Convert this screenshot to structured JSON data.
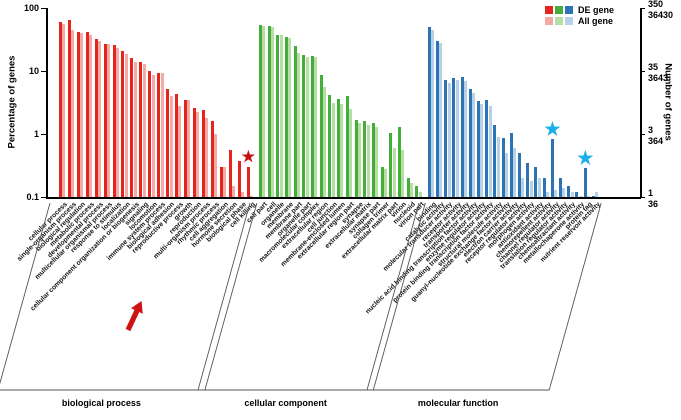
{
  "figure": {
    "y_axis_left": {
      "label": "Percentage of genes",
      "ticks": [
        "100",
        "10",
        "1",
        "0.1"
      ]
    },
    "y_axis_right": {
      "label": "Number of genes",
      "tick_pairs": [
        [
          "350",
          "36430"
        ],
        [
          "35",
          "3643"
        ],
        [
          "3",
          "364"
        ],
        [
          "1",
          "36"
        ]
      ]
    },
    "legend": [
      {
        "label": "DE gene",
        "colors": [
          "#e4251d",
          "#45ad3c",
          "#2d74b4"
        ]
      },
      {
        "label": "All gene",
        "colors": [
          "#f5aba5",
          "#b6dfa3",
          "#b7d2e8"
        ]
      }
    ]
  },
  "chart_data": {
    "type": "bar",
    "scale": "log",
    "ylim": [
      0.1,
      100
    ],
    "ylabel_left": "Percentage of genes",
    "ylabel_right": "Number of genes",
    "series_names": [
      "DE gene",
      "All gene"
    ],
    "values_are": "estimated percentage of genes (log scale)",
    "groups": [
      {
        "name": "biological process",
        "color_de": "#e4251d",
        "color_all": "#f5aba5",
        "star_color": "#c41111",
        "categories": [
          {
            "label": "cellular process",
            "de": 59,
            "all": 56
          },
          {
            "label": "single-organism process",
            "de": 65,
            "all": 45
          },
          {
            "label": "biological regulation",
            "de": 41,
            "all": 40
          },
          {
            "label": "metabolic process",
            "de": 41,
            "all": 37
          },
          {
            "label": "developmental process",
            "de": 32,
            "all": 30
          },
          {
            "label": "multicellular organismal process",
            "de": 27,
            "all": 27
          },
          {
            "label": "response to stimulus",
            "de": 26,
            "all": 23.5
          },
          {
            "label": "localization",
            "de": 20.5,
            "all": 18.5
          },
          {
            "label": "cellular component organization or biogenesis",
            "de": 16,
            "all": 14
          },
          {
            "label": "signaling",
            "de": 14,
            "all": 13
          },
          {
            "label": "locomotion",
            "de": 10,
            "all": 8.5
          },
          {
            "label": "immune system process",
            "de": 9.2,
            "all": 9.2
          },
          {
            "label": "biological adhesion",
            "de": 5.2,
            "all": 4.0
          },
          {
            "label": "reproductive process",
            "de": 4.3,
            "all": 2.8
          },
          {
            "label": "growth",
            "de": 3.5,
            "all": 3.5
          },
          {
            "label": "reproduction",
            "de": 2.6,
            "all": 2.2
          },
          {
            "label": "multi-organism process",
            "de": 2.4,
            "all": 1.8
          },
          {
            "label": "rhythmic process",
            "de": 1.6,
            "all": 1.0
          },
          {
            "label": "cell aggregation",
            "de": 0.3,
            "all": 0.3
          },
          {
            "label": "hormone secretion",
            "de": 0.55,
            "all": 0.15
          },
          {
            "label": "biological phase",
            "de": 0.38,
            "all": 0.12
          },
          {
            "label": "cell killing",
            "de": 0.3,
            "all": 0.1,
            "star": true
          }
        ]
      },
      {
        "name": "cellular component",
        "color_de": "#45ad3c",
        "color_all": "#b6dfa3",
        "star_color": "#2a8f2a",
        "categories": [
          {
            "label": "cell part",
            "de": 54,
            "all": 52
          },
          {
            "label": "cell",
            "de": 51,
            "all": 50
          },
          {
            "label": "organelle",
            "de": 38,
            "all": 37
          },
          {
            "label": "membrane",
            "de": 35,
            "all": 33
          },
          {
            "label": "membrane part",
            "de": 25,
            "all": 19.5
          },
          {
            "label": "organelle part",
            "de": 18,
            "all": 17
          },
          {
            "label": "macromolecular complex",
            "de": 17.5,
            "all": 17
          },
          {
            "label": "extracellular region",
            "de": 8.5,
            "all": 5.5
          },
          {
            "label": "cell junction",
            "de": 4.1,
            "all": 3.1
          },
          {
            "label": "membrane-enclosed lumen",
            "de": 3.6,
            "all": 3.0
          },
          {
            "label": "extracellular region part",
            "de": 4.0,
            "all": 2.5
          },
          {
            "label": "synapse",
            "de": 1.7,
            "all": 1.5
          },
          {
            "label": "extracellular matrix",
            "de": 1.6,
            "all": 1.4
          },
          {
            "label": "synapse part",
            "de": 1.5,
            "all": 1.3
          },
          {
            "label": "collagen trimer",
            "de": 0.3,
            "all": 0.28
          },
          {
            "label": "extracellular matrix part",
            "de": 1.05,
            "all": 0.6
          },
          {
            "label": "virion",
            "de": 1.3,
            "all": 0.55
          },
          {
            "label": "nucleoid",
            "de": 0.2,
            "all": 0.17
          },
          {
            "label": "virion part",
            "de": 0.15,
            "all": 0.12
          }
        ]
      },
      {
        "name": "molecular function",
        "color_de": "#2d74b4",
        "color_all": "#b7d2e8",
        "star_color": "#1cb0ea",
        "categories": [
          {
            "label": "binding",
            "de": 50,
            "all": 45
          },
          {
            "label": "catalytic activity",
            "de": 30,
            "all": 28
          },
          {
            "label": "molecular transducer activity",
            "de": 7.2,
            "all": 6.5
          },
          {
            "label": "receptor activity",
            "de": 7.8,
            "all": 7.2
          },
          {
            "label": "transporter activity",
            "de": 8.0,
            "all": 6.9
          },
          {
            "label": "nucleic acid binding transcription factor activity",
            "de": 5.1,
            "all": 4.5
          },
          {
            "label": "enzyme regulator activity",
            "de": 3.4,
            "all": 3.0
          },
          {
            "label": "protein binding transcription factor activity",
            "de": 3.5,
            "all": 2.8
          },
          {
            "label": "structural molecule activity",
            "de": 1.4,
            "all": 0.9
          },
          {
            "label": "guanyl-nucleotide exchange factor activity",
            "de": 0.85,
            "all": 0.5
          },
          {
            "label": "electron carrier activity",
            "de": 1.05,
            "all": 0.6
          },
          {
            "label": "receptor regulator activity",
            "de": 0.5,
            "all": 0.2
          },
          {
            "label": "morphogen activity",
            "de": 0.35,
            "all": 0.18
          },
          {
            "label": "antioxidant activity",
            "de": 0.3,
            "all": 0.2
          },
          {
            "label": "chemorepellent activity",
            "de": 0.2,
            "all": 0.12
          },
          {
            "label": "channel regulator activity",
            "de": 0.83,
            "all": 0.13,
            "star": true
          },
          {
            "label": "translation regulator activity",
            "de": 0.2,
            "all": 0.14
          },
          {
            "label": "chemoattractant activity",
            "de": 0.15,
            "all": 0.12
          },
          {
            "label": "metallochaperone activity",
            "de": 0.12,
            "all": 0.1
          },
          {
            "label": "protein tag",
            "de": 0.29,
            "all": 0.1,
            "star": true
          },
          {
            "label": "nutrient reservoir activity",
            "de": 0.1,
            "all": 0.12
          }
        ]
      }
    ],
    "annotations": {
      "red_arrow_points_at": "immune system process",
      "red_star_on": "cell killing (DE gene bar)",
      "blue_stars_on": [
        "channel regulator activity (DE gene bar)",
        "protein tag (DE gene bar)"
      ],
      "star_glyph": "★"
    }
  }
}
